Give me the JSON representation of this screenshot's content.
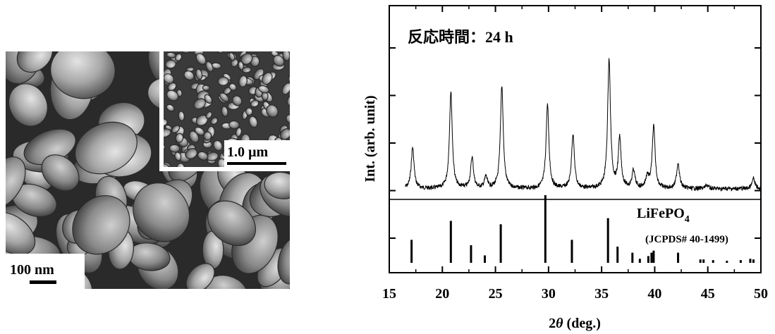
{
  "sem": {
    "main_scale_label": "100 nm",
    "inset_scale_label": "1.0 µm"
  },
  "chart_data": {
    "type": "line",
    "annotation": "反応時間：24 h",
    "xlabel_prefix": "2",
    "xlabel_symbol": "θ",
    "xlabel_suffix": " (deg.)",
    "ylabel": "Int. (arb. unit)",
    "xlim": [
      15,
      50
    ],
    "x_ticks": [
      15,
      20,
      25,
      30,
      35,
      40,
      45,
      50
    ],
    "y_scale": "arbitrary",
    "reference": {
      "label_main": "LiFePO",
      "label_sub": "4",
      "label_card": "(JCPDS# 40-1499)",
      "lines": [
        {
          "x": 17.1,
          "h": 0.34
        },
        {
          "x": 20.8,
          "h": 0.62
        },
        {
          "x": 22.7,
          "h": 0.26
        },
        {
          "x": 24.0,
          "h": 0.11
        },
        {
          "x": 25.5,
          "h": 0.57
        },
        {
          "x": 29.7,
          "h": 1.0
        },
        {
          "x": 32.2,
          "h": 0.34
        },
        {
          "x": 35.6,
          "h": 0.66
        },
        {
          "x": 36.5,
          "h": 0.24
        },
        {
          "x": 37.9,
          "h": 0.15
        },
        {
          "x": 38.6,
          "h": 0.06
        },
        {
          "x": 39.4,
          "h": 0.1
        },
        {
          "x": 39.7,
          "h": 0.15
        },
        {
          "x": 39.9,
          "h": 0.18
        },
        {
          "x": 42.2,
          "h": 0.15
        },
        {
          "x": 44.3,
          "h": 0.05
        },
        {
          "x": 44.6,
          "h": 0.05
        },
        {
          "x": 45.5,
          "h": 0.04
        },
        {
          "x": 46.8,
          "h": 0.03
        },
        {
          "x": 48.1,
          "h": 0.04
        },
        {
          "x": 49.0,
          "h": 0.06
        },
        {
          "x": 49.3,
          "h": 0.05
        }
      ]
    },
    "pattern_peaks": [
      {
        "x": 17.2,
        "h": 0.32
      },
      {
        "x": 20.8,
        "h": 0.75
      },
      {
        "x": 22.8,
        "h": 0.24
      },
      {
        "x": 24.1,
        "h": 0.09
      },
      {
        "x": 25.6,
        "h": 0.8
      },
      {
        "x": 29.9,
        "h": 0.65
      },
      {
        "x": 32.3,
        "h": 0.42
      },
      {
        "x": 35.7,
        "h": 1.0
      },
      {
        "x": 36.7,
        "h": 0.38
      },
      {
        "x": 38.0,
        "h": 0.14
      },
      {
        "x": 39.3,
        "h": 0.09
      },
      {
        "x": 39.9,
        "h": 0.48
      },
      {
        "x": 42.2,
        "h": 0.2
      },
      {
        "x": 44.9,
        "h": 0.03
      },
      {
        "x": 49.3,
        "h": 0.08
      }
    ]
  }
}
